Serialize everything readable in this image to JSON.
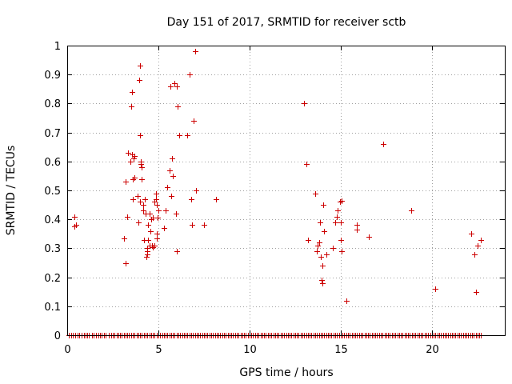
{
  "chart_data": {
    "type": "scatter",
    "title": "Day 151 of 2017, SRMTID for receiver sctb",
    "xlabel": "GPS time / hours",
    "ylabel": "SRMTID / TECUs",
    "xlim": [
      0,
      24
    ],
    "ylim": [
      0,
      1
    ],
    "xticks": [
      0,
      5,
      10,
      15,
      20
    ],
    "yticks": [
      0,
      0.1,
      0.2,
      0.3,
      0.4,
      0.5,
      0.6,
      0.7,
      0.8,
      0.9,
      1
    ],
    "xtick_labels": [
      "0",
      "5",
      "10",
      "15",
      "20"
    ],
    "ytick_labels": [
      "0",
      "0.1",
      "0.2",
      "0.3",
      "0.4",
      "0.5",
      "0.6",
      "0.7",
      "0.8",
      "0.9",
      "1"
    ],
    "grid": true,
    "marker": "+",
    "marker_color": "#cc0000",
    "series": [
      {
        "name": "SRMTID",
        "points": [
          [
            0.4,
            0.41
          ],
          [
            0.4,
            0.375
          ],
          [
            0.5,
            0.38
          ],
          [
            3.1,
            0.335
          ],
          [
            3.2,
            0.25
          ],
          [
            3.2,
            0.53
          ],
          [
            3.3,
            0.41
          ],
          [
            3.35,
            0.63
          ],
          [
            3.45,
            0.6
          ],
          [
            3.5,
            0.79
          ],
          [
            3.55,
            0.84
          ],
          [
            3.55,
            0.625
          ],
          [
            3.6,
            0.47
          ],
          [
            3.6,
            0.54
          ],
          [
            3.65,
            0.61
          ],
          [
            3.7,
            0.62
          ],
          [
            3.7,
            0.545
          ],
          [
            3.85,
            0.48
          ],
          [
            3.9,
            0.39
          ],
          [
            3.95,
            0.88
          ],
          [
            4.0,
            0.93
          ],
          [
            4.0,
            0.69
          ],
          [
            4.0,
            0.46
          ],
          [
            4.05,
            0.59
          ],
          [
            4.05,
            0.6
          ],
          [
            4.1,
            0.58
          ],
          [
            4.1,
            0.54
          ],
          [
            4.15,
            0.45
          ],
          [
            4.15,
            0.43
          ],
          [
            4.2,
            0.33
          ],
          [
            4.25,
            0.47
          ],
          [
            4.3,
            0.42
          ],
          [
            4.35,
            0.27
          ],
          [
            4.4,
            0.29
          ],
          [
            4.4,
            0.28
          ],
          [
            4.4,
            0.3
          ],
          [
            4.45,
            0.33
          ],
          [
            4.45,
            0.38
          ],
          [
            4.5,
            0.42
          ],
          [
            4.5,
            0.31
          ],
          [
            4.55,
            0.36
          ],
          [
            4.6,
            0.4
          ],
          [
            4.65,
            0.31
          ],
          [
            4.7,
            0.305
          ],
          [
            4.7,
            0.405
          ],
          [
            4.8,
            0.31
          ],
          [
            4.8,
            0.46
          ],
          [
            4.85,
            0.47
          ],
          [
            4.85,
            0.49
          ],
          [
            4.9,
            0.45
          ],
          [
            4.9,
            0.35
          ],
          [
            4.9,
            0.335
          ],
          [
            4.95,
            0.405
          ],
          [
            5.0,
            0.43
          ],
          [
            5.3,
            0.37
          ],
          [
            5.4,
            0.43
          ],
          [
            5.5,
            0.51
          ],
          [
            5.6,
            0.57
          ],
          [
            5.65,
            0.86
          ],
          [
            5.7,
            0.48
          ],
          [
            5.75,
            0.61
          ],
          [
            5.8,
            0.55
          ],
          [
            5.9,
            0.87
          ],
          [
            5.95,
            0.42
          ],
          [
            6.0,
            0.29
          ],
          [
            6.0,
            0.86
          ],
          [
            6.05,
            0.79
          ],
          [
            6.15,
            0.69
          ],
          [
            6.6,
            0.69
          ],
          [
            6.7,
            0.9
          ],
          [
            6.8,
            0.47
          ],
          [
            6.85,
            0.38
          ],
          [
            6.95,
            0.74
          ],
          [
            7.0,
            0.98
          ],
          [
            7.05,
            0.5
          ],
          [
            7.5,
            0.38
          ],
          [
            8.15,
            0.47
          ],
          [
            13.0,
            0.8
          ],
          [
            13.1,
            0.59
          ],
          [
            13.2,
            0.33
          ],
          [
            13.6,
            0.49
          ],
          [
            13.7,
            0.29
          ],
          [
            13.75,
            0.31
          ],
          [
            13.8,
            0.32
          ],
          [
            13.85,
            0.39
          ],
          [
            13.9,
            0.27
          ],
          [
            13.95,
            0.19
          ],
          [
            14.0,
            0.24
          ],
          [
            14.0,
            0.18
          ],
          [
            14.05,
            0.45
          ],
          [
            14.1,
            0.36
          ],
          [
            14.2,
            0.28
          ],
          [
            14.55,
            0.3
          ],
          [
            14.7,
            0.39
          ],
          [
            14.8,
            0.41
          ],
          [
            14.85,
            0.43
          ],
          [
            14.95,
            0.46
          ],
          [
            15.0,
            0.33
          ],
          [
            15.0,
            0.39
          ],
          [
            15.05,
            0.29
          ],
          [
            15.05,
            0.465
          ],
          [
            15.3,
            0.12
          ],
          [
            15.9,
            0.38
          ],
          [
            15.9,
            0.365
          ],
          [
            16.55,
            0.34
          ],
          [
            17.35,
            0.66
          ],
          [
            18.85,
            0.43
          ],
          [
            20.2,
            0.16
          ],
          [
            22.15,
            0.35
          ],
          [
            22.35,
            0.28
          ],
          [
            22.4,
            0.15
          ],
          [
            22.5,
            0.31
          ],
          [
            22.7,
            0.33
          ]
        ]
      },
      {
        "name": "zero",
        "y": 0,
        "x": [
          0.1,
          0.2,
          0.3,
          0.45,
          0.55,
          0.65,
          0.8,
          0.9,
          1.0,
          1.1,
          1.2,
          1.35,
          1.45,
          1.6,
          1.7,
          1.8,
          1.9,
          2.0,
          2.1,
          2.3,
          2.4,
          2.5,
          2.6,
          2.7,
          2.8,
          2.9,
          3.0,
          3.1,
          3.2,
          3.3,
          3.4,
          3.5,
          3.6,
          3.7,
          3.8,
          3.9,
          4.0,
          4.1,
          4.2,
          4.3,
          4.4,
          4.5,
          4.6,
          4.7,
          4.8,
          4.9,
          5.0,
          5.1,
          5.2,
          5.3,
          5.4,
          5.5,
          5.6,
          5.7,
          5.8,
          5.9,
          6.0,
          6.1,
          6.2,
          6.3,
          6.4,
          6.5,
          6.6,
          6.7,
          6.8,
          6.9,
          7.0,
          7.1,
          7.2,
          7.3,
          7.4,
          7.5,
          7.6,
          7.7,
          7.8,
          7.9,
          8.0,
          8.1,
          8.2,
          8.3,
          8.4,
          8.5,
          8.6,
          8.7,
          8.8,
          8.9,
          9.0,
          9.1,
          9.2,
          9.3,
          9.4,
          9.5,
          9.6,
          9.7,
          9.8,
          9.9,
          10.0,
          10.1,
          10.2,
          10.3,
          10.4,
          10.5,
          10.6,
          10.7,
          10.8,
          10.9,
          11.0,
          11.1,
          11.2,
          11.3,
          11.4,
          11.5,
          11.6,
          11.7,
          11.8,
          11.9,
          12.0,
          12.1,
          12.2,
          12.3,
          12.4,
          12.5,
          12.6,
          12.7,
          12.8,
          12.9,
          13.0,
          13.1,
          13.2,
          13.3,
          13.4,
          13.5,
          13.6,
          13.7,
          13.8,
          13.9,
          14.0,
          14.1,
          14.2,
          14.3,
          14.4,
          14.5,
          14.6,
          14.7,
          14.8,
          14.9,
          15.0,
          15.1,
          15.2,
          15.3,
          15.4,
          15.5,
          15.6,
          15.7,
          15.8,
          15.9,
          16.0,
          16.1,
          16.2,
          16.3,
          16.4,
          16.5,
          16.6,
          16.7,
          16.8,
          16.9,
          17.0,
          17.1,
          17.2,
          17.3,
          17.4,
          17.5,
          17.6,
          17.7,
          17.8,
          17.9,
          18.0,
          18.1,
          18.2,
          18.3,
          18.4,
          18.5,
          18.6,
          18.7,
          18.8,
          18.9,
          19.0,
          19.1,
          19.2,
          19.3,
          19.4,
          19.5,
          19.6,
          19.7,
          19.8,
          19.9,
          20.0,
          20.1,
          20.2,
          20.3,
          20.4,
          20.5,
          20.6,
          20.7,
          20.8,
          20.9,
          21.0,
          21.1,
          21.2,
          21.3,
          21.4,
          21.5,
          21.6,
          21.7,
          21.8,
          21.9,
          22.0,
          22.1,
          22.2,
          22.3,
          22.4,
          22.5,
          22.6,
          22.7
        ]
      }
    ]
  }
}
